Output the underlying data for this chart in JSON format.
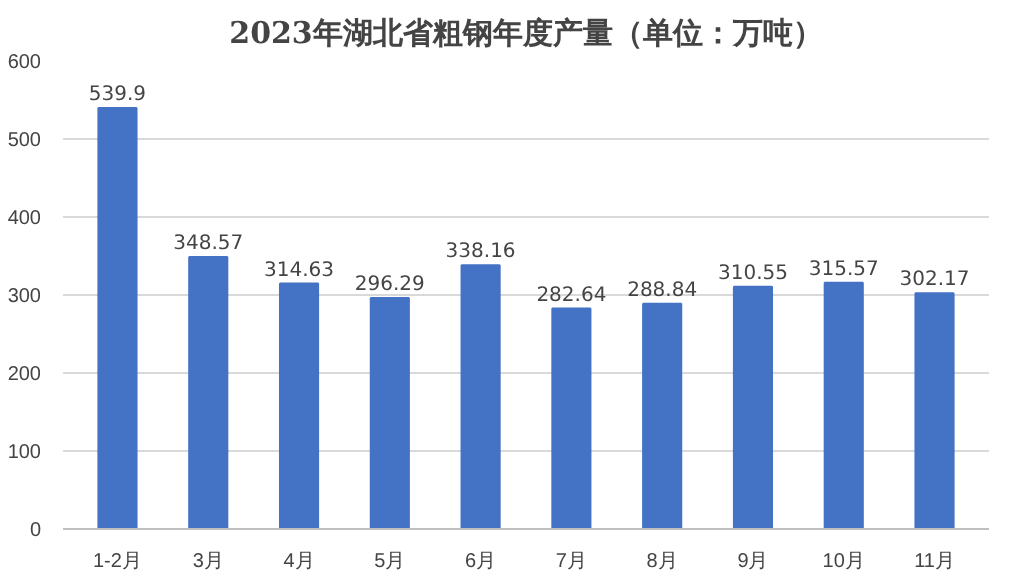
{
  "chart_data": {
    "type": "bar",
    "title": "2023年湖北省粗钢年度产量（单位：万吨）",
    "categories": [
      "1-2月",
      "3月",
      "4月",
      "5月",
      "6月",
      "7月",
      "8月",
      "9月",
      "10月",
      "11月"
    ],
    "values": [
      539.9,
      348.57,
      314.63,
      296.29,
      338.16,
      282.64,
      288.84,
      310.55,
      315.57,
      302.17
    ],
    "color": "#4472c4",
    "ylim": [
      0,
      600
    ],
    "yticks": [
      0,
      100,
      200,
      300,
      400,
      500,
      600
    ],
    "grid": "y",
    "data_labels": true
  }
}
